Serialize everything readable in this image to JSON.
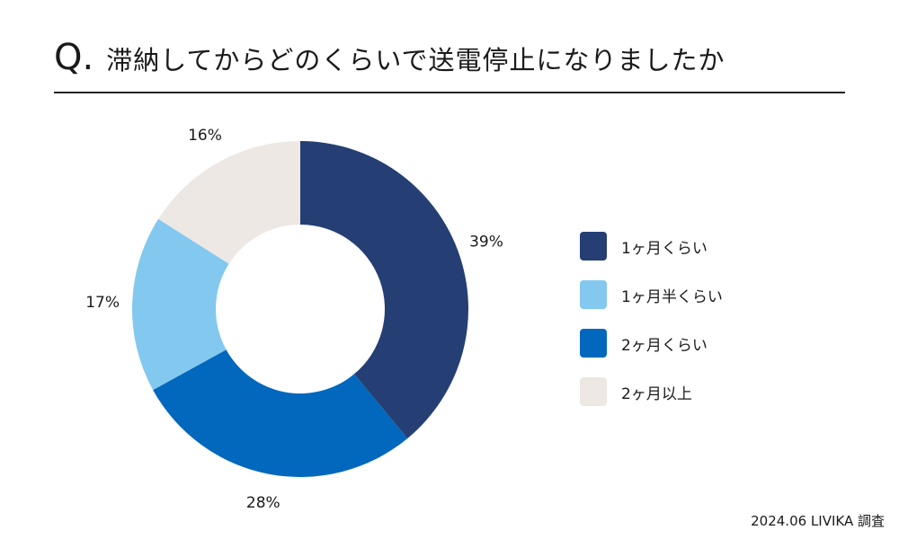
{
  "header": {
    "q_mark": "Q.",
    "title": "滞納してからどのくらいで送電停止になりましたか"
  },
  "chart_data": {
    "type": "pie",
    "style": "donut",
    "categories": [
      "1ヶ月くらい",
      "1ヶ月半くらい",
      "2ヶ月くらい",
      "2ヶ月以上"
    ],
    "values": [
      39,
      17,
      28,
      16
    ],
    "display_order": [
      0,
      2,
      1,
      3
    ],
    "unit": "%",
    "colors": [
      "#253f75",
      "#83c8ef",
      "#0268bd",
      "#ede8e4"
    ],
    "legend_position": "right"
  },
  "footer": {
    "source": "2024.06 LIVIKA 調査"
  }
}
